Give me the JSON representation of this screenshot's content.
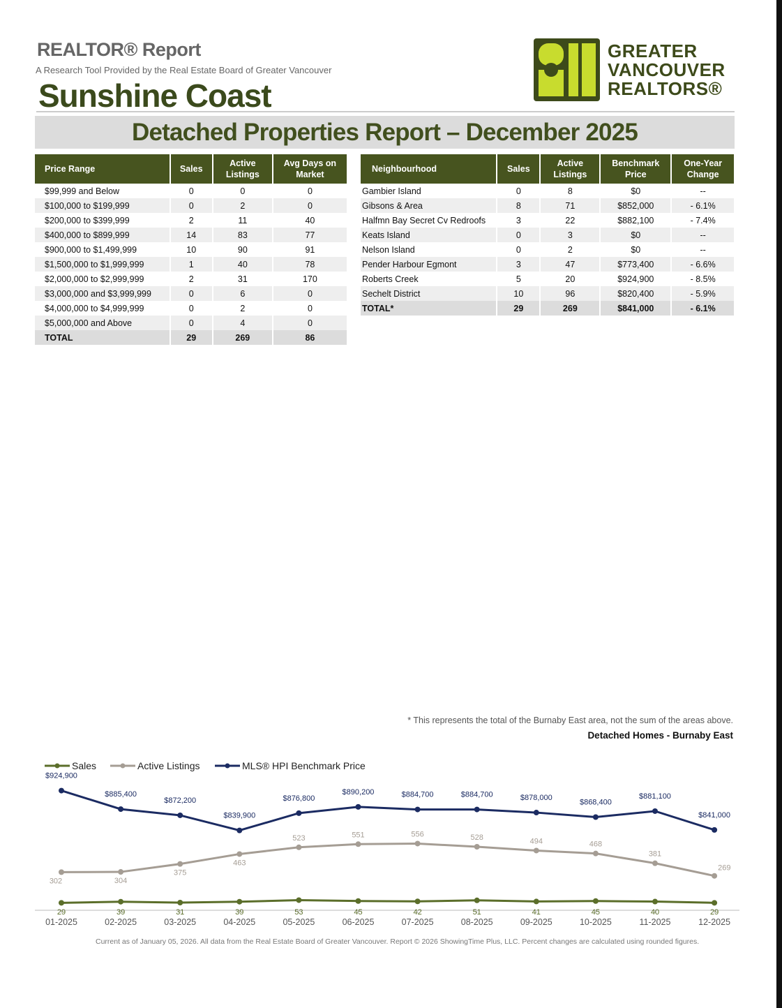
{
  "header": {
    "title": "REALTOR® Report",
    "subtitle": "A Research Tool Provided by the Real Estate Board of Greater Vancouver",
    "area": "Sunshine Coast",
    "logo": [
      "GREATER",
      "VANCOUVER",
      "REALTORS®"
    ]
  },
  "report_title": "Detached Properties Report – December 2025",
  "price_table": {
    "columns": [
      "Price Range",
      "Sales",
      "Active Listings",
      "Avg Days on Market"
    ],
    "rows": [
      [
        "$99,999 and Below",
        "0",
        "0",
        "0"
      ],
      [
        "$100,000 to $199,999",
        "0",
        "2",
        "0"
      ],
      [
        "$200,000 to $399,999",
        "2",
        "11",
        "40"
      ],
      [
        "$400,000 to $899,999",
        "14",
        "83",
        "77"
      ],
      [
        "$900,000 to $1,499,999",
        "10",
        "90",
        "91"
      ],
      [
        "$1,500,000 to $1,999,999",
        "1",
        "40",
        "78"
      ],
      [
        "$2,000,000 to $2,999,999",
        "2",
        "31",
        "170"
      ],
      [
        "$3,000,000 and $3,999,999",
        "0",
        "6",
        "0"
      ],
      [
        "$4,000,000 to $4,999,999",
        "0",
        "2",
        "0"
      ],
      [
        "$5,000,000 and Above",
        "0",
        "4",
        "0"
      ]
    ],
    "total": [
      "TOTAL",
      "29",
      "269",
      "86"
    ]
  },
  "neighbourhood_table": {
    "columns": [
      "Neighbourhood",
      "Sales",
      "Active Listings",
      "Benchmark Price",
      "One-Year Change"
    ],
    "rows": [
      [
        "Gambier Island",
        "0",
        "8",
        "$0",
        "--"
      ],
      [
        "Gibsons & Area",
        "8",
        "71",
        "$852,000",
        "- 6.1%"
      ],
      [
        "Halfmn Bay Secret Cv Redroofs",
        "3",
        "22",
        "$882,100",
        "- 7.4%"
      ],
      [
        "Keats Island",
        "0",
        "3",
        "$0",
        "--"
      ],
      [
        "Nelson Island",
        "0",
        "2",
        "$0",
        "--"
      ],
      [
        "Pender Harbour Egmont",
        "3",
        "47",
        "$773,400",
        "- 6.6%"
      ],
      [
        "Roberts Creek",
        "5",
        "20",
        "$924,900",
        "- 8.5%"
      ],
      [
        "Sechelt District",
        "10",
        "96",
        "$820,400",
        "- 5.9%"
      ]
    ],
    "total": [
      "TOTAL*",
      "29",
      "269",
      "$841,000",
      "- 6.1%"
    ]
  },
  "footnote": "* This represents the total of the Burnaby East area, not the sum of the areas above.",
  "chart_caption": "Detached Homes - Burnaby East",
  "chart_data": {
    "type": "line",
    "x": [
      "01-2025",
      "02-2025",
      "03-2025",
      "04-2025",
      "05-2025",
      "06-2025",
      "07-2025",
      "08-2025",
      "09-2025",
      "10-2025",
      "11-2025",
      "12-2025"
    ],
    "series": [
      {
        "name": "Sales",
        "color": "#5b6e2a",
        "values": [
          29,
          39,
          31,
          39,
          53,
          45,
          42,
          51,
          41,
          45,
          40,
          29
        ]
      },
      {
        "name": "Active Listings",
        "color": "#a59d94",
        "values": [
          302,
          304,
          375,
          463,
          523,
          551,
          556,
          528,
          494,
          468,
          381,
          269
        ]
      },
      {
        "name": "MLS® HPI Benchmark Price",
        "color": "#1b2b62",
        "axis": "y2",
        "values": [
          924900,
          885400,
          872200,
          839900,
          876800,
          890200,
          884700,
          884700,
          878000,
          868400,
          881100,
          841000
        ],
        "value_labels": [
          "$924,900",
          "$885,400",
          "$872,200",
          "$839,900",
          "$876,800",
          "$890,200",
          "$884,700",
          "$884,700",
          "$878,000",
          "$868,400",
          "$881,100",
          "$841,000"
        ]
      }
    ]
  },
  "footer": "Current as of January 05, 2026. All data from the Real Estate Board of Greater Vancouver. Report © 2026 ShowingTime Plus, LLC. Percent changes are calculated using rounded figures."
}
